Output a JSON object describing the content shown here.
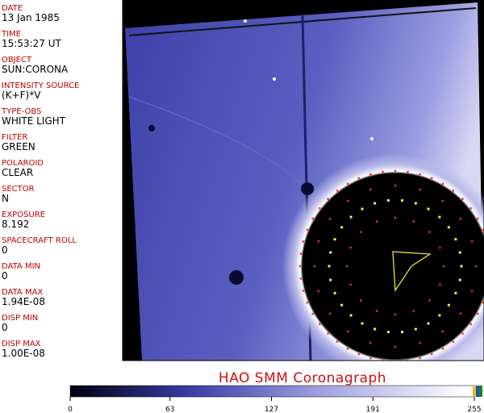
{
  "header": {
    "fields": [
      {
        "label": "DATE",
        "value": "13 Jan 1985"
      },
      {
        "label": "TIME",
        "value": "15:53:27 UT"
      },
      {
        "label": "OBJECT",
        "value": "SUN:CORONA"
      },
      {
        "label": "INTENSITY SOURCE",
        "value": "(K+F)*V"
      },
      {
        "label": "TYPE-OBS",
        "value": "WHITE LIGHT"
      },
      {
        "label": "FILTER",
        "value": "GREEN"
      },
      {
        "label": "POLAROID",
        "value": "CLEAR"
      },
      {
        "label": "SECTOR",
        "value": "N"
      },
      {
        "label": "EXPOSURE",
        "value": "8.192"
      },
      {
        "label": "SPACECRAFT ROLL",
        "value": "0"
      },
      {
        "label": "DATA MIN",
        "value": "0"
      },
      {
        "label": "DATA MAX",
        "value": "1.94E-08"
      },
      {
        "label": "DISP MIN",
        "value": "0"
      },
      {
        "label": "DISP MAX",
        "value": "1.00E-08"
      }
    ]
  },
  "title": "HAO   SMM  Coronagraph",
  "colorbar": {
    "lim": [
      0,
      255
    ],
    "ticks": [
      0,
      63,
      127,
      191,
      255
    ]
  }
}
